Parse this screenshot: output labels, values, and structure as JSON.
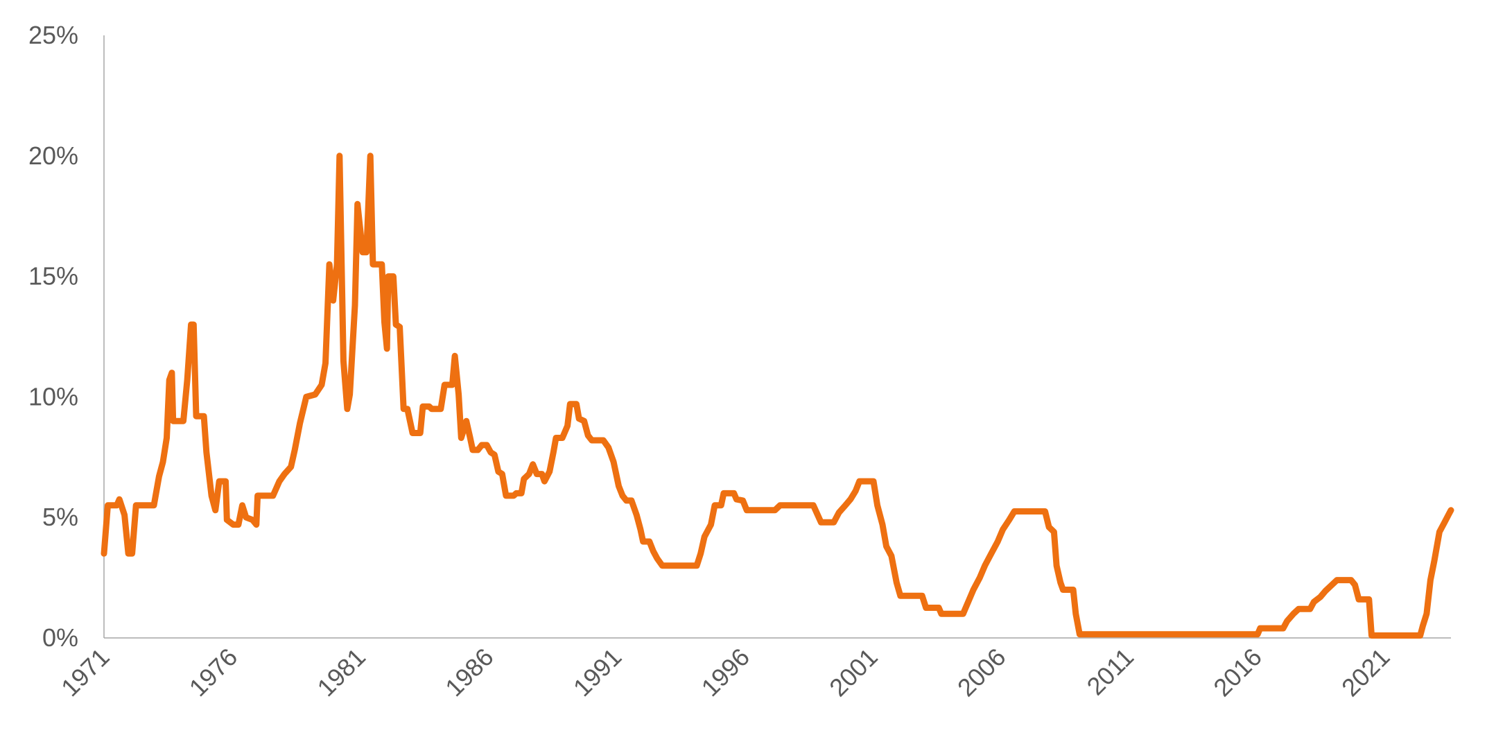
{
  "chart_data": {
    "type": "line",
    "color": "#ee7011",
    "grid": false,
    "xlim": [
      1971,
      2023.6
    ],
    "xticks": [
      1971,
      1976,
      1981,
      1986,
      1991,
      1996,
      2001,
      2006,
      2011,
      2016,
      2021
    ],
    "ylim": [
      0,
      25
    ],
    "yticks": [
      {
        "value": 0,
        "label": "0%"
      },
      {
        "value": 5,
        "label": "5%"
      },
      {
        "value": 10,
        "label": "10%"
      },
      {
        "value": 15,
        "label": "15%"
      },
      {
        "value": 20,
        "label": "20%"
      },
      {
        "value": 25,
        "label": "25%"
      }
    ],
    "x": [
      1971.0,
      1971.15,
      1971.5,
      1971.6,
      1971.8,
      1971.95,
      1972.1,
      1972.25,
      1972.95,
      1973.15,
      1973.3,
      1973.45,
      1973.55,
      1973.65,
      1973.7,
      1974.1,
      1974.25,
      1974.4,
      1974.5,
      1974.6,
      1974.9,
      1975.0,
      1975.2,
      1975.35,
      1975.5,
      1975.75,
      1975.8,
      1976.05,
      1976.25,
      1976.4,
      1976.55,
      1976.8,
      1976.95,
      1977.0,
      1977.6,
      1977.85,
      1978.05,
      1978.3,
      1978.45,
      1978.65,
      1978.9,
      1979.25,
      1979.5,
      1979.65,
      1979.8,
      1979.95,
      1980.1,
      1980.2,
      1980.35,
      1980.5,
      1980.6,
      1980.8,
      1980.9,
      1981.1,
      1981.25,
      1981.4,
      1981.5,
      1981.85,
      1981.95,
      1982.05,
      1982.1,
      1982.3,
      1982.4,
      1982.55,
      1982.7,
      1982.85,
      1983.05,
      1983.35,
      1983.45,
      1983.7,
      1983.8,
      1984.15,
      1984.3,
      1984.6,
      1984.7,
      1984.85,
      1984.95,
      1985.15,
      1985.3,
      1985.4,
      1985.6,
      1985.75,
      1985.95,
      1986.1,
      1986.25,
      1986.4,
      1986.55,
      1986.7,
      1987.0,
      1987.1,
      1987.3,
      1987.4,
      1987.6,
      1987.75,
      1987.9,
      1988.1,
      1988.2,
      1988.4,
      1988.55,
      1988.65,
      1988.9,
      1989.1,
      1989.2,
      1989.45,
      1989.55,
      1989.75,
      1989.9,
      1990.05,
      1990.5,
      1990.7,
      1990.9,
      1991.1,
      1991.25,
      1991.4,
      1991.6,
      1991.8,
      1991.95,
      1992.05,
      1992.3,
      1992.45,
      1992.6,
      1992.8,
      1994.15,
      1994.3,
      1994.45,
      1994.7,
      1994.85,
      1995.1,
      1995.2,
      1995.6,
      1995.7,
      1995.95,
      1996.1,
      1997.2,
      1997.4,
      1998.7,
      1999.0,
      1999.5,
      1999.7,
      1999.95,
      2000.15,
      2000.35,
      2000.5,
      2001.05,
      2001.2,
      2001.4,
      2001.55,
      2001.75,
      2001.95,
      2002.1,
      2002.95,
      2003.1,
      2003.6,
      2003.7,
      2004.55,
      2004.75,
      2004.95,
      2005.2,
      2005.4,
      2005.65,
      2005.9,
      2006.1,
      2006.35,
      2006.55,
      2007.75,
      2007.9,
      2008.1,
      2008.2,
      2008.35,
      2008.45,
      2008.85,
      2008.95,
      2009.1,
      2016.05,
      2016.15,
      2017.05,
      2017.2,
      2017.45,
      2017.65,
      2018.1,
      2018.25,
      2018.5,
      2018.7,
      2018.95,
      2019.15,
      2019.7,
      2019.85,
      2020.0,
      2020.4,
      2020.5,
      2022.4,
      2022.5,
      2022.65,
      2022.8,
      2022.95,
      2023.15,
      2023.35,
      2023.5,
      2023.6
    ],
    "values": [
      3.5,
      5.5,
      5.5,
      5.75,
      5.1,
      3.5,
      3.5,
      5.5,
      5.5,
      6.7,
      7.3,
      8.3,
      10.7,
      11,
      9,
      9,
      10.7,
      13,
      13,
      9.2,
      9.2,
      7.7,
      5.9,
      5.3,
      6.5,
      6.5,
      4.9,
      4.7,
      4.7,
      5.5,
      5.0,
      4.9,
      4.7,
      5.9,
      5.9,
      6.5,
      6.8,
      7.1,
      7.8,
      8.9,
      10.0,
      10.1,
      10.5,
      11.4,
      15.5,
      14,
      15.5,
      20,
      11.5,
      9.5,
      10.1,
      13.8,
      18,
      16,
      16,
      20,
      15.5,
      15.5,
      13.1,
      12,
      15,
      15,
      13,
      12.9,
      9.5,
      9.5,
      8.5,
      8.5,
      9.6,
      9.6,
      9.5,
      9.5,
      10.5,
      10.5,
      11.7,
      10.1,
      8.3,
      9,
      8.3,
      7.8,
      7.8,
      8,
      8,
      7.7,
      7.6,
      6.9,
      6.8,
      5.9,
      5.9,
      6.0,
      6.0,
      6.6,
      6.8,
      7.2,
      6.8,
      6.8,
      6.5,
      6.9,
      7.7,
      8.3,
      8.3,
      8.8,
      9.7,
      9.7,
      9.1,
      9,
      8.4,
      8.2,
      8.2,
      7.9,
      7.3,
      6.3,
      5.9,
      5.7,
      5.7,
      5.1,
      4.5,
      4.0,
      4.0,
      3.6,
      3.3,
      3.0,
      3.0,
      3.5,
      4.2,
      4.7,
      5.5,
      5.5,
      6.0,
      6.0,
      5.75,
      5.7,
      5.3,
      5.3,
      5.5,
      5.5,
      4.8,
      4.8,
      5.2,
      5.5,
      5.75,
      6.1,
      6.5,
      6.5,
      5.5,
      4.7,
      3.8,
      3.4,
      2.3,
      1.75,
      1.75,
      1.25,
      1.25,
      1.0,
      1.0,
      1.5,
      2.0,
      2.5,
      3.0,
      3.5,
      4.0,
      4.5,
      4.9,
      5.25,
      5.25,
      4.6,
      4.4,
      3.0,
      2.3,
      2.0,
      2.0,
      1.0,
      0.15,
      0.15,
      0.4,
      0.4,
      0.7,
      1.0,
      1.2,
      1.2,
      1.5,
      1.7,
      1.95,
      2.2,
      2.4,
      2.4,
      2.2,
      1.6,
      1.6,
      0.1,
      0.1,
      0.5,
      1.0,
      2.4,
      3.2,
      4.4,
      4.8,
      5.1,
      5.3
    ]
  }
}
